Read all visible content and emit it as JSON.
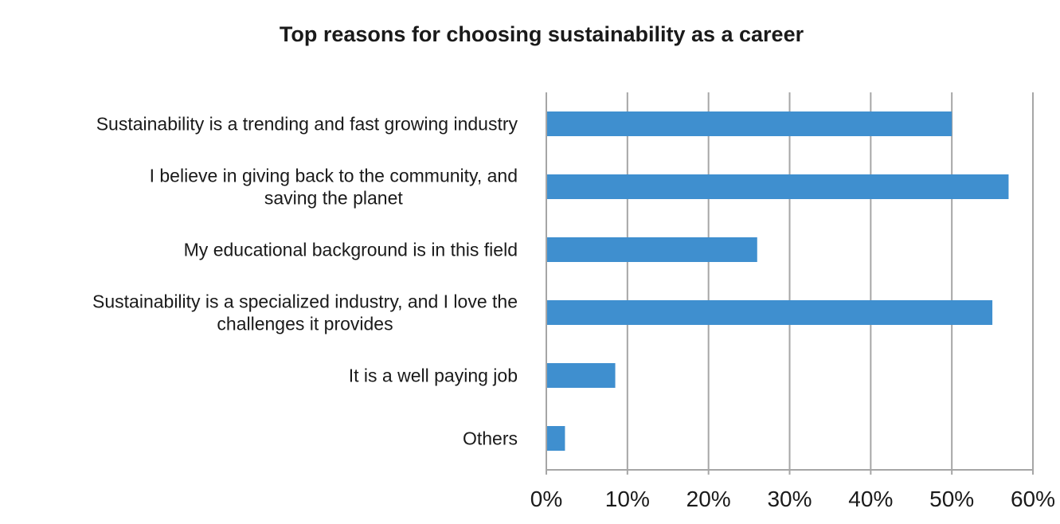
{
  "chart_data": {
    "type": "bar",
    "orientation": "horizontal",
    "title": "Top reasons for choosing sustainability as a career",
    "categories": [
      [
        "Sustainability is a trending and fast growing industry"
      ],
      [
        "I believe in giving back to the community, and",
        "saving the planet"
      ],
      [
        "My educational background is in this field"
      ],
      [
        "Sustainability is a specialized industry, and I love the",
        "challenges it provides"
      ],
      [
        "It is a well paying job"
      ],
      [
        "Others"
      ]
    ],
    "values": [
      50,
      57,
      26,
      55,
      8.5,
      2.3
    ],
    "xlim": [
      0,
      60
    ],
    "xticks": [
      "0%",
      "10%",
      "20%",
      "30%",
      "40%",
      "50%",
      "60%"
    ],
    "grid": true,
    "bar_color": "#3f8fcf",
    "legend": "none"
  }
}
